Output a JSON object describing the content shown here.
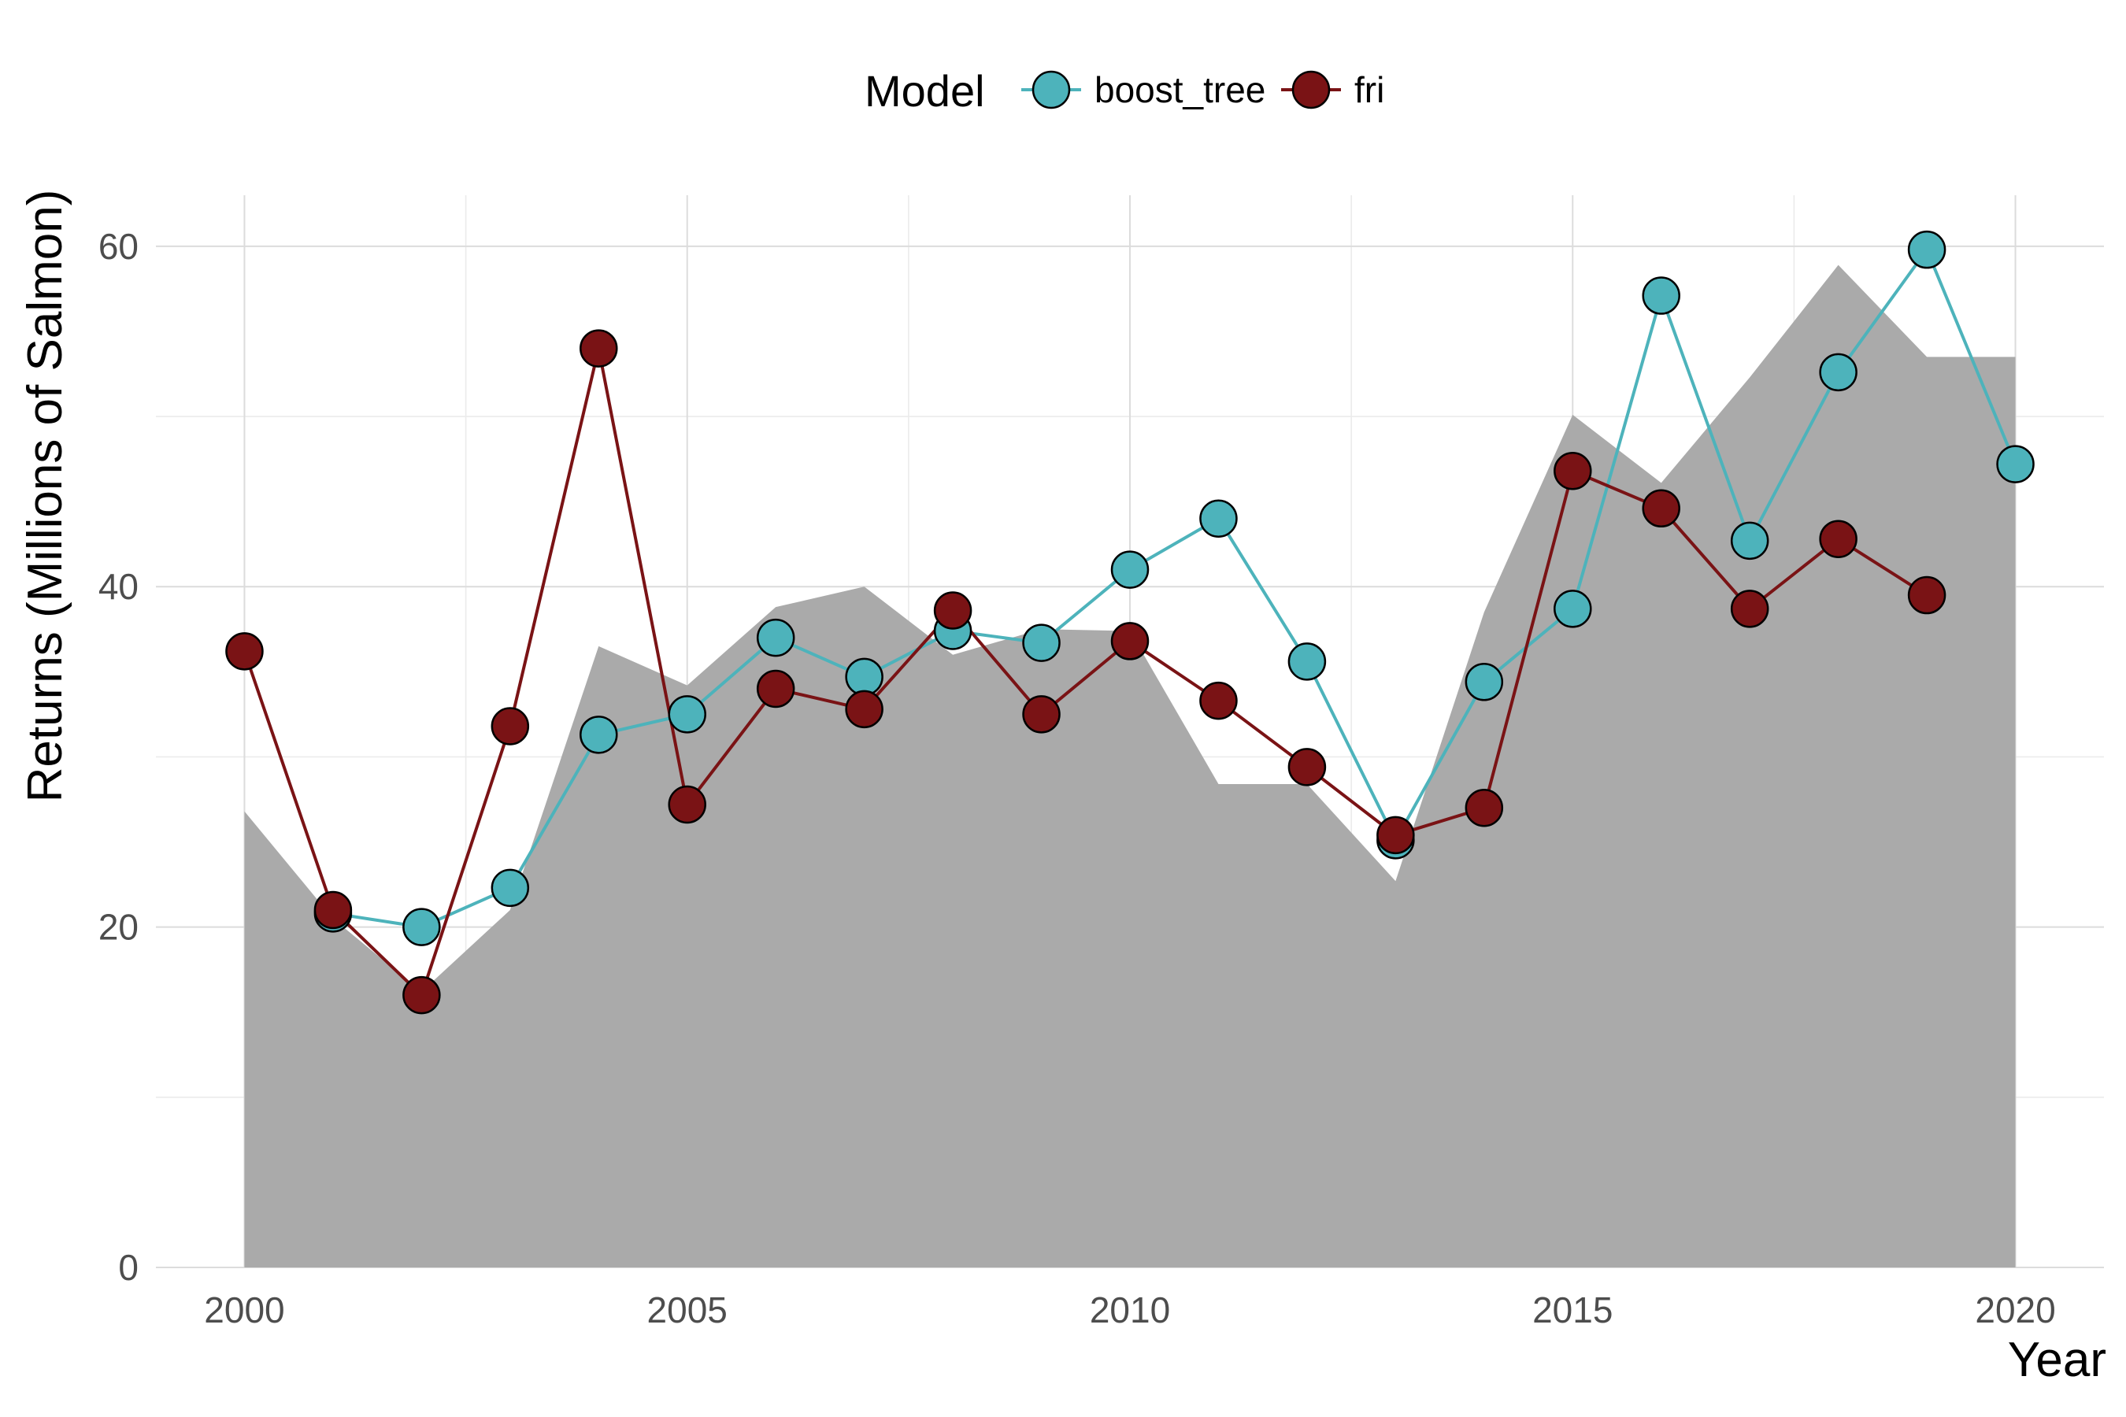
{
  "chart_data": {
    "type": "line",
    "xlabel": "Year",
    "ylabel": "Returns (Millions of Salmon)",
    "xlim": [
      1999,
      2021
    ],
    "ylim": [
      0,
      63
    ],
    "x_ticks": [
      2000,
      2005,
      2010,
      2015,
      2020
    ],
    "y_ticks": [
      0,
      20,
      40,
      60
    ],
    "grid": true,
    "legend": {
      "title": "Model",
      "position": "top"
    },
    "observed_area": {
      "color": "#aaaaaa",
      "x": [
        2000,
        2001,
        2002,
        2003,
        2004,
        2005,
        2006,
        2007,
        2008,
        2009,
        2010,
        2011,
        2012,
        2013,
        2014,
        2015,
        2016,
        2017,
        2018,
        2019,
        2020
      ],
      "values": [
        26.8,
        20.5,
        16.2,
        21.0,
        36.5,
        34.2,
        38.8,
        40.0,
        36.0,
        37.5,
        37.4,
        28.4,
        28.4,
        22.7,
        38.5,
        50.1,
        46.1,
        52.3,
        58.9,
        53.5,
        53.5
      ]
    },
    "series": [
      {
        "name": "boost_tree",
        "color": "#4db3bb",
        "x": [
          2001,
          2002,
          2003,
          2004,
          2005,
          2006,
          2007,
          2008,
          2009,
          2010,
          2011,
          2012,
          2013,
          2014,
          2015,
          2016,
          2017,
          2018,
          2019,
          2020
        ],
        "values": [
          20.8,
          20.0,
          22.3,
          31.3,
          32.5,
          37.0,
          34.7,
          37.4,
          36.7,
          41.0,
          44.0,
          35.6,
          25.1,
          34.4,
          38.7,
          57.1,
          42.7,
          52.6,
          59.8,
          47.2
        ]
      },
      {
        "name": "fri",
        "color": "#7a1315",
        "x": [
          2000,
          2001,
          2002,
          2003,
          2004,
          2005,
          2006,
          2007,
          2008,
          2009,
          2010,
          2011,
          2012,
          2013,
          2014,
          2015,
          2016,
          2017,
          2018,
          2019
        ],
        "values": [
          36.2,
          21.0,
          16.0,
          31.8,
          54.0,
          27.2,
          34.0,
          32.8,
          38.6,
          32.5,
          36.8,
          33.3,
          29.4,
          25.4,
          27.0,
          46.8,
          44.6,
          38.7,
          42.8,
          39.5
        ]
      }
    ]
  }
}
